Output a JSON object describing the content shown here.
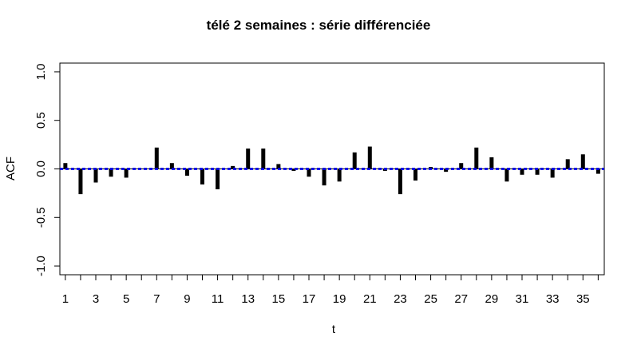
{
  "chart_data": {
    "type": "bar",
    "title": "télé 2 semaines : série différenciée",
    "xlabel": "t",
    "ylabel": "ACF",
    "x": [
      1,
      2,
      3,
      4,
      5,
      6,
      7,
      8,
      9,
      10,
      11,
      12,
      13,
      14,
      15,
      16,
      17,
      18,
      19,
      20,
      21,
      22,
      23,
      24,
      25,
      26,
      27,
      28,
      29,
      30,
      31,
      32,
      33,
      34,
      35,
      36
    ],
    "values": [
      0.06,
      -0.26,
      -0.14,
      -0.08,
      -0.09,
      0.0,
      0.22,
      0.06,
      -0.07,
      -0.16,
      -0.21,
      0.03,
      0.21,
      0.21,
      0.05,
      -0.02,
      -0.08,
      -0.17,
      -0.13,
      0.17,
      0.23,
      -0.02,
      -0.26,
      -0.12,
      0.02,
      -0.03,
      0.06,
      0.22,
      0.12,
      -0.13,
      -0.06,
      -0.06,
      -0.09,
      0.1,
      0.15,
      -0.05
    ],
    "x_ticks": [
      "1",
      "3",
      "5",
      "7",
      "9",
      "11",
      "13",
      "15",
      "17",
      "19",
      "21",
      "23",
      "25",
      "27",
      "29",
      "31",
      "33",
      "35"
    ],
    "y_ticks": [
      "-1.0",
      "-0.5",
      "0.0",
      "0.5",
      "1.0"
    ],
    "ylim": [
      -1.09,
      1.09
    ],
    "xlim": [
      0.64,
      36.4
    ],
    "confidence_band": 0.006,
    "grid": false,
    "colors": {
      "bars": "#000000",
      "band": "#0000ff",
      "zero_line": "#000000"
    }
  }
}
